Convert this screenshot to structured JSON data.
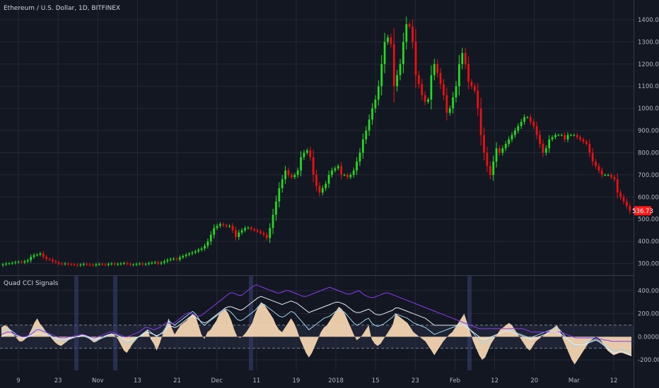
{
  "header": {
    "symbol_title": "Ethereum / U.S. Dollar, 1D, BITFINEX"
  },
  "indicator": {
    "title": "Quad CCI Signals"
  },
  "price_badge": {
    "value": "536.73",
    "color": "#ff1a1a"
  },
  "colors": {
    "up": "#22dd22",
    "down": "#ee1111",
    "cci_fill": "#f8d9b3",
    "cci_line": "#9fd8f0",
    "cci_violet": "#8a3cf0",
    "cci_white": "#e6eef5"
  },
  "chart_data": [
    {
      "type": "candlestick",
      "title": "Ethereum / U.S. Dollar, 1D, BITFINEX",
      "ylim": [
        200,
        1450
      ],
      "y_ticks": [
        "300.00",
        "400.00",
        "500.00",
        "600.00",
        "700.00",
        "800.00",
        "900.00",
        "1000.00",
        "1100.00",
        "1200.00",
        "1300.00",
        "1400.00"
      ],
      "last_price": 536.73,
      "series": [
        {
          "name": "closes",
          "values": [
            296,
            300,
            301,
            303,
            306,
            308,
            305,
            310,
            315,
            330,
            338,
            340,
            345,
            330,
            320,
            318,
            310,
            305,
            300,
            298,
            300,
            297,
            296,
            294,
            292,
            295,
            298,
            296,
            294,
            292,
            296,
            298,
            296,
            294,
            298,
            300,
            296,
            298,
            300,
            302,
            298,
            294,
            295,
            298,
            300,
            296,
            298,
            302,
            304,
            306,
            300,
            304,
            310,
            316,
            320,
            322,
            318,
            328,
            334,
            340,
            345,
            350,
            355,
            362,
            368,
            380,
            400,
            430,
            460,
            470,
            478,
            472,
            468,
            470,
            450,
            420,
            440,
            450,
            460,
            462,
            455,
            450,
            445,
            438,
            430,
            415,
            460,
            520,
            580,
            640,
            680,
            720,
            700,
            690,
            700,
            720,
            780,
            800,
            810,
            780,
            700,
            650,
            620,
            640,
            660,
            700,
            720,
            730,
            740,
            700,
            700,
            690,
            700,
            720,
            760,
            800,
            860,
            900,
            950,
            1000,
            1040,
            1100,
            1200,
            1300,
            1320,
            1290,
            1100,
            1150,
            1200,
            1300,
            1380,
            1370,
            1300,
            1150,
            1110,
            1060,
            1030,
            1040,
            1150,
            1200,
            1160,
            1110,
            1060,
            980,
            1000,
            1050,
            1100,
            1200,
            1250,
            1200,
            1120,
            1100,
            1080,
            1000,
            880,
            800,
            740,
            700,
            760,
            820,
            800,
            820,
            840,
            860,
            880,
            900,
            920,
            940,
            960,
            960,
            940,
            920,
            880,
            840,
            800,
            820,
            860,
            870,
            880,
            880,
            880,
            860,
            880,
            880,
            880,
            870,
            860,
            850,
            840,
            800,
            760,
            740,
            720,
            700,
            700,
            700,
            690,
            680,
            620,
            600,
            580,
            560,
            536.73
          ]
        }
      ]
    },
    {
      "type": "area",
      "title": "Quad CCI Signals",
      "ylim": [
        -260,
        470
      ],
      "y_ticks": [
        "400.0000",
        "200.0000",
        "0.0000",
        "-200.0000"
      ],
      "x_ticks": [
        "9",
        "23",
        "Nov",
        "13",
        "21",
        "Dec",
        "11",
        "19",
        "2018",
        "15",
        "23",
        "Feb",
        "12",
        "20",
        "Mar",
        "12"
      ],
      "thresholds": [
        100,
        -100
      ],
      "series": [
        {
          "name": "fill",
          "values": [
            80,
            100,
            90,
            60,
            20,
            -10,
            -40,
            -40,
            -20,
            10,
            60,
            120,
            160,
            110,
            80,
            40,
            10,
            -20,
            -50,
            -70,
            -80,
            -60,
            -40,
            -20,
            -10,
            0,
            10,
            20,
            10,
            -10,
            -30,
            -50,
            -40,
            -20,
            0,
            10,
            20,
            30,
            10,
            -20,
            -70,
            -120,
            -140,
            -100,
            -60,
            -30,
            0,
            20,
            40,
            60,
            -20,
            -60,
            -120,
            -60,
            20,
            80,
            160,
            80,
            20,
            60,
            100,
            120,
            140,
            170,
            200,
            180,
            100,
            20,
            -20,
            40,
            60,
            100,
            140,
            200,
            220,
            240,
            200,
            140,
            60,
            0,
            -10,
            10,
            40,
            80,
            120,
            200,
            260,
            300,
            280,
            240,
            200,
            160,
            100,
            60,
            40,
            80,
            120,
            160,
            120,
            60,
            -20,
            -80,
            -140,
            -180,
            -140,
            -80,
            -20,
            40,
            80,
            100,
            140,
            180,
            220,
            260,
            240,
            200,
            140,
            80,
            20,
            -30,
            -10,
            20,
            60,
            100,
            -20,
            -60,
            -80,
            -60,
            -20,
            20,
            60,
            100,
            200,
            180,
            160,
            140,
            120,
            80,
            40,
            20,
            0,
            -20,
            -40,
            -80,
            -120,
            -160,
            -120,
            -80,
            -40,
            -10,
            20,
            40,
            80,
            120,
            160,
            200,
            120,
            40,
            -40,
            -100,
            -160,
            -200,
            -180,
            -120,
            -60,
            -20,
            20,
            60,
            80,
            100,
            120,
            100,
            60,
            20,
            -20,
            -60,
            -100,
            -120,
            -80,
            -40,
            -20,
            0,
            20,
            40,
            60,
            80,
            100,
            60,
            -20,
            -80,
            -140,
            -200,
            -240,
            -200,
            -160,
            -120,
            -80,
            -40,
            -20,
            0,
            -10,
            -40,
            -80,
            -120,
            -140,
            -160,
            -150,
            -140,
            -140,
            -150,
            -160,
            -170
          ]
        },
        {
          "name": "line-cyan",
          "values": [
            40,
            60,
            70,
            60,
            40,
            20,
            0,
            -10,
            -10,
            0,
            20,
            60,
            80,
            70,
            60,
            40,
            20,
            0,
            -20,
            -30,
            -40,
            -40,
            -30,
            -20,
            -10,
            0,
            0,
            10,
            0,
            -10,
            -20,
            -30,
            -30,
            -20,
            -10,
            0,
            10,
            20,
            20,
            10,
            -10,
            -40,
            -60,
            -50,
            -40,
            -20,
            0,
            20,
            40,
            60,
            40,
            20,
            0,
            20,
            40,
            80,
            140,
            120,
            100,
            120,
            140,
            160,
            180,
            200,
            220,
            200,
            160,
            120,
            100,
            120,
            140,
            160,
            180,
            200,
            220,
            240,
            230,
            210,
            180,
            150,
            140,
            150,
            170,
            190,
            210,
            230,
            260,
            290,
            280,
            260,
            240,
            220,
            200,
            180,
            170,
            180,
            200,
            220,
            210,
            180,
            150,
            120,
            90,
            60,
            80,
            100,
            120,
            140,
            160,
            170,
            180,
            200,
            220,
            240,
            230,
            210,
            180,
            150,
            120,
            100,
            110,
            130,
            150,
            160,
            120,
            100,
            90,
            100,
            110,
            130,
            150,
            170,
            200,
            190,
            180,
            170,
            160,
            140,
            120,
            110,
            100,
            90,
            80,
            60,
            40,
            20,
            30,
            40,
            50,
            60,
            70,
            80,
            90,
            100,
            110,
            120,
            90,
            60,
            30,
            0,
            -30,
            -60,
            -50,
            -30,
            -10,
            0,
            20,
            30,
            40,
            50,
            60,
            50,
            40,
            30,
            20,
            10,
            0,
            -10,
            0,
            10,
            20,
            30,
            40,
            50,
            60,
            70,
            80,
            60,
            30,
            0,
            -30,
            -60,
            -90,
            -80,
            -70,
            -60,
            -50,
            -40,
            -30,
            -20,
            -30,
            -50,
            -70,
            -90,
            -110,
            -130,
            -120,
            -110,
            -110,
            -120,
            -130,
            -140
          ]
        },
        {
          "name": "line-violet",
          "values": [
            20,
            30,
            40,
            40,
            30,
            20,
            10,
            0,
            0,
            10,
            20,
            40,
            60,
            60,
            50,
            40,
            30,
            20,
            10,
            0,
            -10,
            -10,
            -10,
            0,
            0,
            10,
            10,
            20,
            20,
            10,
            0,
            -10,
            -10,
            0,
            10,
            20,
            30,
            40,
            40,
            30,
            20,
            10,
            0,
            0,
            10,
            20,
            30,
            40,
            60,
            80,
            80,
            70,
            60,
            70,
            80,
            100,
            120,
            120,
            110,
            120,
            140,
            160,
            180,
            200,
            210,
            200,
            190,
            180,
            180,
            200,
            220,
            240,
            260,
            280,
            300,
            320,
            340,
            360,
            380,
            380,
            370,
            360,
            360,
            380,
            400,
            420,
            440,
            450,
            440,
            430,
            420,
            410,
            400,
            390,
            380,
            380,
            390,
            400,
            400,
            390,
            380,
            370,
            360,
            350,
            350,
            360,
            370,
            380,
            390,
            400,
            410,
            420,
            430,
            420,
            410,
            400,
            390,
            380,
            370,
            370,
            380,
            390,
            400,
            380,
            360,
            350,
            340,
            340,
            350,
            360,
            370,
            380,
            380,
            370,
            360,
            350,
            340,
            330,
            320,
            310,
            300,
            290,
            280,
            270,
            260,
            250,
            240,
            230,
            220,
            210,
            200,
            190,
            180,
            170,
            160,
            150,
            140,
            130,
            120,
            110,
            100,
            90,
            80,
            70,
            70,
            70,
            70,
            70,
            70,
            70,
            70,
            70,
            70,
            70,
            70,
            70,
            70,
            70,
            70,
            60,
            50,
            40,
            40,
            40,
            40,
            40,
            40,
            40,
            40,
            40,
            40,
            40,
            30,
            20,
            10,
            0,
            -10,
            -10,
            -10,
            -10,
            -10,
            -10,
            -10,
            -10,
            -20,
            -20,
            -30,
            -30,
            -40,
            -40,
            -40,
            -40,
            -40,
            -40,
            -40,
            -40
          ]
        },
        {
          "name": "line-white",
          "values": [
            0,
            10,
            20,
            20,
            20,
            10,
            0,
            -10,
            -10,
            0,
            10,
            20,
            30,
            30,
            20,
            20,
            10,
            0,
            -10,
            -20,
            -20,
            -20,
            -20,
            -10,
            -10,
            0,
            0,
            10,
            10,
            0,
            -10,
            -20,
            -20,
            -10,
            0,
            10,
            20,
            20,
            20,
            10,
            0,
            -20,
            -30,
            -30,
            -20,
            -10,
            0,
            10,
            30,
            40,
            30,
            20,
            10,
            20,
            30,
            60,
            90,
            90,
            80,
            90,
            110,
            130,
            150,
            170,
            180,
            170,
            150,
            130,
            120,
            130,
            150,
            170,
            190,
            210,
            230,
            250,
            260,
            260,
            250,
            240,
            230,
            240,
            260,
            280,
            300,
            320,
            340,
            350,
            340,
            330,
            320,
            310,
            300,
            290,
            280,
            290,
            300,
            310,
            300,
            290,
            270,
            250,
            230,
            210,
            220,
            230,
            240,
            250,
            260,
            270,
            280,
            290,
            300,
            300,
            290,
            280,
            260,
            240,
            220,
            210,
            210,
            220,
            230,
            240,
            220,
            200,
            190,
            190,
            200,
            210,
            220,
            230,
            250,
            250,
            240,
            230,
            220,
            210,
            200,
            190,
            180,
            170,
            160,
            140,
            120,
            100,
            100,
            100,
            100,
            100,
            100,
            100,
            100,
            100,
            100,
            100,
            80,
            60,
            40,
            20,
            0,
            -20,
            -20,
            -10,
            0,
            10,
            20,
            30,
            40,
            50,
            50,
            40,
            30,
            20,
            10,
            0,
            -10,
            -20,
            -20,
            -10,
            0,
            10,
            20,
            30,
            40,
            40,
            40,
            30,
            10,
            -10,
            -30,
            -50,
            -70,
            -70,
            -70,
            -70,
            -60,
            -50,
            -40,
            -30,
            -40,
            -60,
            -80,
            -100,
            -120,
            -140,
            -140,
            -130,
            -130,
            -140,
            -150,
            -160
          ]
        }
      ]
    }
  ]
}
